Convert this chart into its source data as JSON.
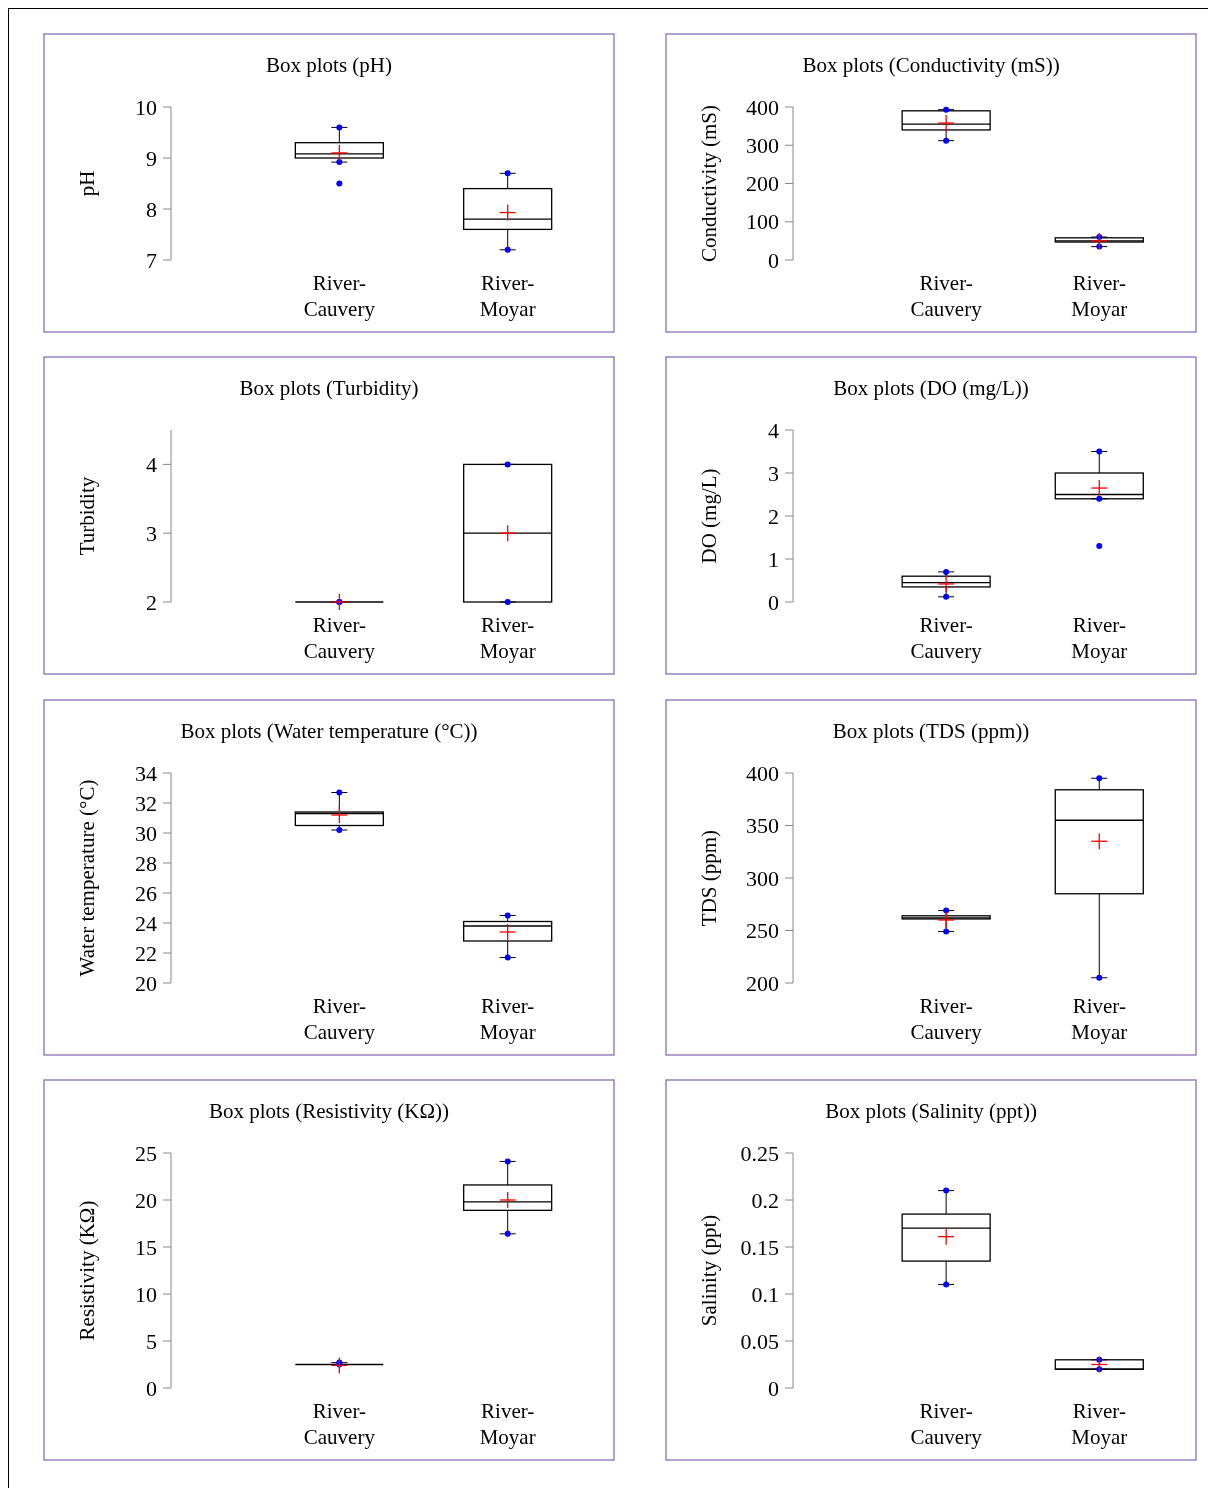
{
  "chart_data": [
    {
      "type": "box",
      "title": "Box plots (pH)",
      "ylabel": "pH",
      "categories": [
        "River-Cauvery",
        "River-Moyar"
      ],
      "ylim": [
        7,
        10
      ],
      "yticks": [
        7,
        8,
        9,
        10
      ],
      "color": "#000000",
      "boxes": [
        {
          "low": 8.92,
          "q1": 9.0,
          "median": 9.08,
          "q3": 9.3,
          "high": 9.6,
          "mean": 9.1,
          "outliers": [
            8.5
          ]
        },
        {
          "low": 7.2,
          "q1": 7.6,
          "median": 7.8,
          "q3": 8.4,
          "high": 8.7,
          "mean": 7.93
        }
      ]
    },
    {
      "type": "box",
      "title": "Box plots (Conductivity  (mS))",
      "ylabel": "Conductivity  (mS)",
      "categories": [
        "River-Cauvery",
        "River-Moyar"
      ],
      "ylim": [
        0,
        400
      ],
      "yticks": [
        0,
        100,
        200,
        300,
        400
      ],
      "color": "#000000",
      "boxes": [
        {
          "low": 312,
          "q1": 340,
          "median": 355,
          "q3": 390,
          "high": 393,
          "mean": 358
        },
        {
          "low": 35,
          "q1": 47,
          "median": 50,
          "q3": 58,
          "high": 60,
          "mean": 50
        }
      ]
    },
    {
      "type": "box",
      "title": "Box plots (Turbidity)",
      "ylabel": "Turbidity",
      "categories": [
        "River-Cauvery",
        "River-Moyar"
      ],
      "ylim": [
        2,
        4.5
      ],
      "yticks": [
        2,
        3,
        4
      ],
      "color": "#000000",
      "boxes": [
        {
          "low": 2,
          "q1": 2,
          "median": 2,
          "q3": 2,
          "high": 2,
          "mean": 2
        },
        {
          "low": 2,
          "q1": 2,
          "median": 3,
          "q3": 4,
          "high": 4,
          "mean": 3
        }
      ]
    },
    {
      "type": "box",
      "title": "Box plots (DO  (mg/L))",
      "ylabel": "DO  (mg/L)",
      "categories": [
        "River-Cauvery",
        "River-Moyar"
      ],
      "ylim": [
        0,
        4
      ],
      "yticks": [
        0,
        1,
        2,
        3,
        4
      ],
      "color": "#000000",
      "boxes": [
        {
          "low": 0.12,
          "q1": 0.35,
          "median": 0.45,
          "q3": 0.6,
          "high": 0.7,
          "mean": 0.42
        },
        {
          "low": 2.4,
          "q1": 2.4,
          "median": 2.5,
          "q3": 3.0,
          "high": 3.5,
          "mean": 2.65,
          "outliers": [
            1.3
          ]
        }
      ]
    },
    {
      "type": "box",
      "title": "Box plots (Water temperature (°C))",
      "ylabel": "Water temperature (°C)",
      "categories": [
        "River-Cauvery",
        "River-Moyar"
      ],
      "ylim": [
        20,
        34
      ],
      "yticks": [
        20,
        22,
        24,
        26,
        28,
        30,
        32,
        34
      ],
      "color": "#000000",
      "boxes": [
        {
          "low": 30.2,
          "q1": 30.5,
          "median": 31.3,
          "q3": 31.4,
          "high": 32.7,
          "mean": 31.2
        },
        {
          "low": 21.7,
          "q1": 22.8,
          "median": 23.8,
          "q3": 24.1,
          "high": 24.5,
          "mean": 23.4
        }
      ]
    },
    {
      "type": "box",
      "title": "Box plots (TDS  (ppm))",
      "ylabel": "TDS  (ppm)",
      "categories": [
        "River-Cauvery",
        "River-Moyar"
      ],
      "ylim": [
        200,
        400
      ],
      "yticks": [
        200,
        250,
        300,
        350,
        400
      ],
      "color": "#000000",
      "boxes": [
        {
          "low": 249,
          "q1": 261,
          "median": 262,
          "q3": 264,
          "high": 269,
          "mean": 260
        },
        {
          "low": 205,
          "q1": 285,
          "median": 355,
          "q3": 384,
          "high": 395,
          "mean": 335
        }
      ]
    },
    {
      "type": "box",
      "title": "Box plots (Resistivity  (KΩ))",
      "ylabel": "Resistivity  (KΩ)",
      "categories": [
        "River-Cauvery",
        "River-Moyar"
      ],
      "ylim": [
        0,
        25
      ],
      "yticks": [
        0,
        5,
        10,
        15,
        20,
        25
      ],
      "color": "#000000",
      "boxes": [
        {
          "low": 2.5,
          "q1": 2.5,
          "median": 2.5,
          "q3": 2.5,
          "high": 2.7,
          "mean": 2.4
        },
        {
          "low": 16.4,
          "q1": 18.9,
          "median": 19.8,
          "q3": 21.6,
          "high": 24.1,
          "mean": 20
        }
      ]
    },
    {
      "type": "box",
      "title": "Box plots (Salinity (ppt))",
      "ylabel": "Salinity (ppt)",
      "categories": [
        "River-Cauvery",
        "River-Moyar"
      ],
      "ylim": [
        0,
        0.25
      ],
      "yticks": [
        0,
        0.05,
        0.1,
        0.15,
        0.2,
        0.25
      ],
      "color": "#000000",
      "boxes": [
        {
          "low": 0.11,
          "q1": 0.135,
          "median": 0.17,
          "q3": 0.185,
          "high": 0.21,
          "mean": 0.161
        },
        {
          "low": 0.02,
          "q1": 0.02,
          "median": 0.02,
          "q3": 0.03,
          "high": 0.03,
          "mean": 0.025
        }
      ]
    }
  ]
}
